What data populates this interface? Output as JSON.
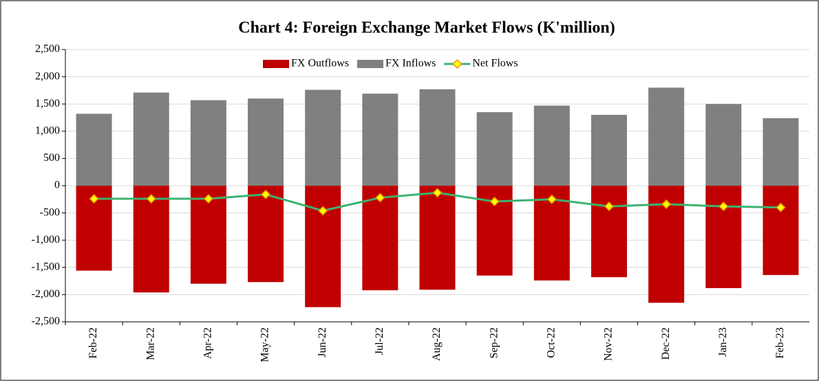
{
  "chart_data": {
    "type": "bar",
    "title": "Chart 4: Foreign Exchange Market Flows (K'million)",
    "categories": [
      "Feb-22",
      "Mar-22",
      "Apr-22",
      "May-22",
      "Jun-22",
      "Jul-22",
      "Aug-22",
      "Sep-22",
      "Oct-22",
      "Nov-22",
      "Dec-22",
      "Jan-23",
      "Feb-23"
    ],
    "series": [
      {
        "name": "FX Outflows",
        "type": "bar",
        "color": "#c00000",
        "values": [
          -1560,
          -1960,
          -1800,
          -1770,
          -2230,
          -1920,
          -1910,
          -1650,
          -1740,
          -1680,
          -2150,
          -1880,
          -1640
        ]
      },
      {
        "name": "FX Inflows",
        "type": "bar",
        "color": "#808080",
        "values": [
          1320,
          1710,
          1570,
          1600,
          1760,
          1690,
          1770,
          1350,
          1470,
          1300,
          1800,
          1500,
          1240
        ]
      },
      {
        "name": "Net Flows",
        "type": "line",
        "color": "#3cb371",
        "marker_color": "#ffff00",
        "values": [
          -240,
          -240,
          -240,
          -160,
          -460,
          -220,
          -130,
          -290,
          -250,
          -380,
          -340,
          -380,
          -400
        ]
      }
    ],
    "ylim": [
      -2500,
      2500
    ],
    "yticks": [
      {
        "value": 2500,
        "label": "2,500"
      },
      {
        "value": 2000,
        "label": "2,000"
      },
      {
        "value": 1500,
        "label": "1,500"
      },
      {
        "value": 1000,
        "label": "1,000"
      },
      500,
      0,
      -500,
      {
        "value": -1000,
        "label": "-1,000"
      },
      {
        "value": -1500,
        "label": "-1,500"
      },
      {
        "value": -2000,
        "label": "-2,000"
      },
      {
        "value": -2500,
        "label": "-2,500"
      }
    ],
    "grid": true,
    "legend": "top"
  }
}
